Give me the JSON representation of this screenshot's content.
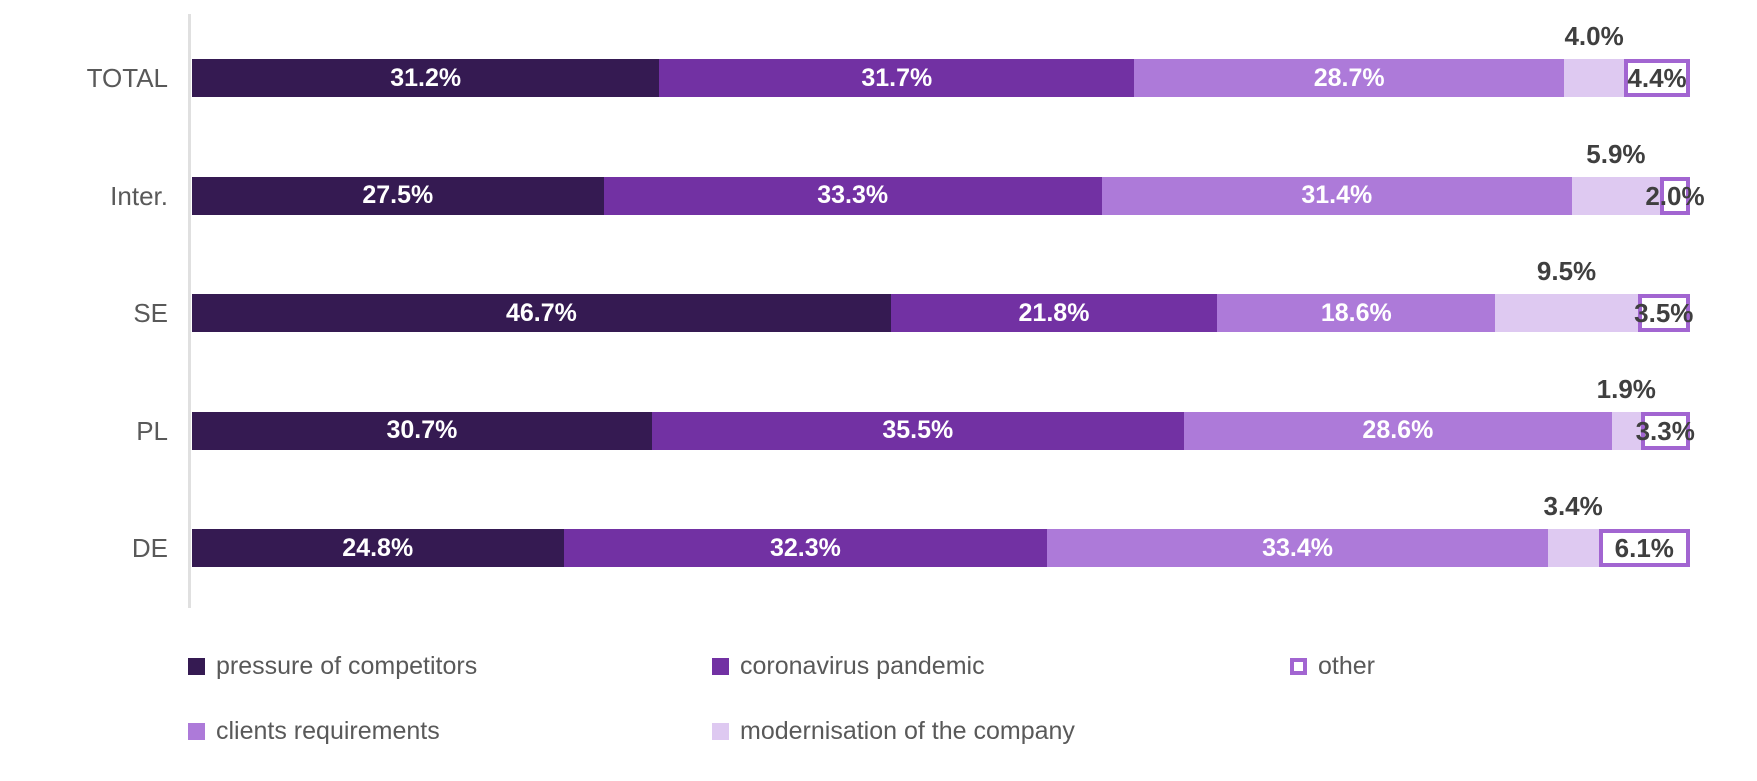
{
  "chart_data": {
    "type": "bar",
    "variant": "horizontal-100-percent-stacked",
    "title": "",
    "xlabel": "",
    "ylabel": "",
    "xlim": [
      0,
      100
    ],
    "grid": false,
    "value_suffix": "%",
    "categories": [
      "TOTAL",
      "Inter.",
      "SE",
      "PL",
      "DE"
    ],
    "series": [
      {
        "name": "pressure of competitors",
        "color": "#351A52",
        "values": [
          31.2,
          27.5,
          46.7,
          30.7,
          24.8
        ]
      },
      {
        "name": "coronavirus pandemic",
        "color": "#7231A3",
        "values": [
          31.7,
          33.3,
          21.8,
          35.5,
          32.3
        ]
      },
      {
        "name": "clients requirements",
        "color": "#AD7AD9",
        "values": [
          28.7,
          31.4,
          18.6,
          28.6,
          33.4
        ]
      },
      {
        "name": "modernisation of the company",
        "color": "#DEC9F1",
        "values": [
          4.0,
          5.9,
          9.5,
          1.9,
          3.4
        ]
      },
      {
        "name": "other",
        "color": "#FFFFFF",
        "border": "#A265D1",
        "values": [
          4.4,
          2.0,
          3.5,
          3.3,
          6.1
        ]
      }
    ],
    "label_placement_note": "first three series labeled inside bars in white; modernisation value labeled above bar; other value labeled on outlined box",
    "legend_position": "bottom",
    "legend_items": [
      {
        "label": "pressure of competitors",
        "series": 0
      },
      {
        "label": "coronavirus pandemic",
        "series": 1
      },
      {
        "label": "other",
        "series": 4
      },
      {
        "label": "clients requirements",
        "series": 2
      },
      {
        "label": "modernisation of the company",
        "series": 3
      }
    ],
    "colors": {
      "axis_line": "#E0E0E0",
      "category_label_text": "#595959",
      "outside_value_text": "#3F3F3F",
      "inside_value_text": "#FFFFFF",
      "other_box_border": "#A265D1"
    }
  }
}
